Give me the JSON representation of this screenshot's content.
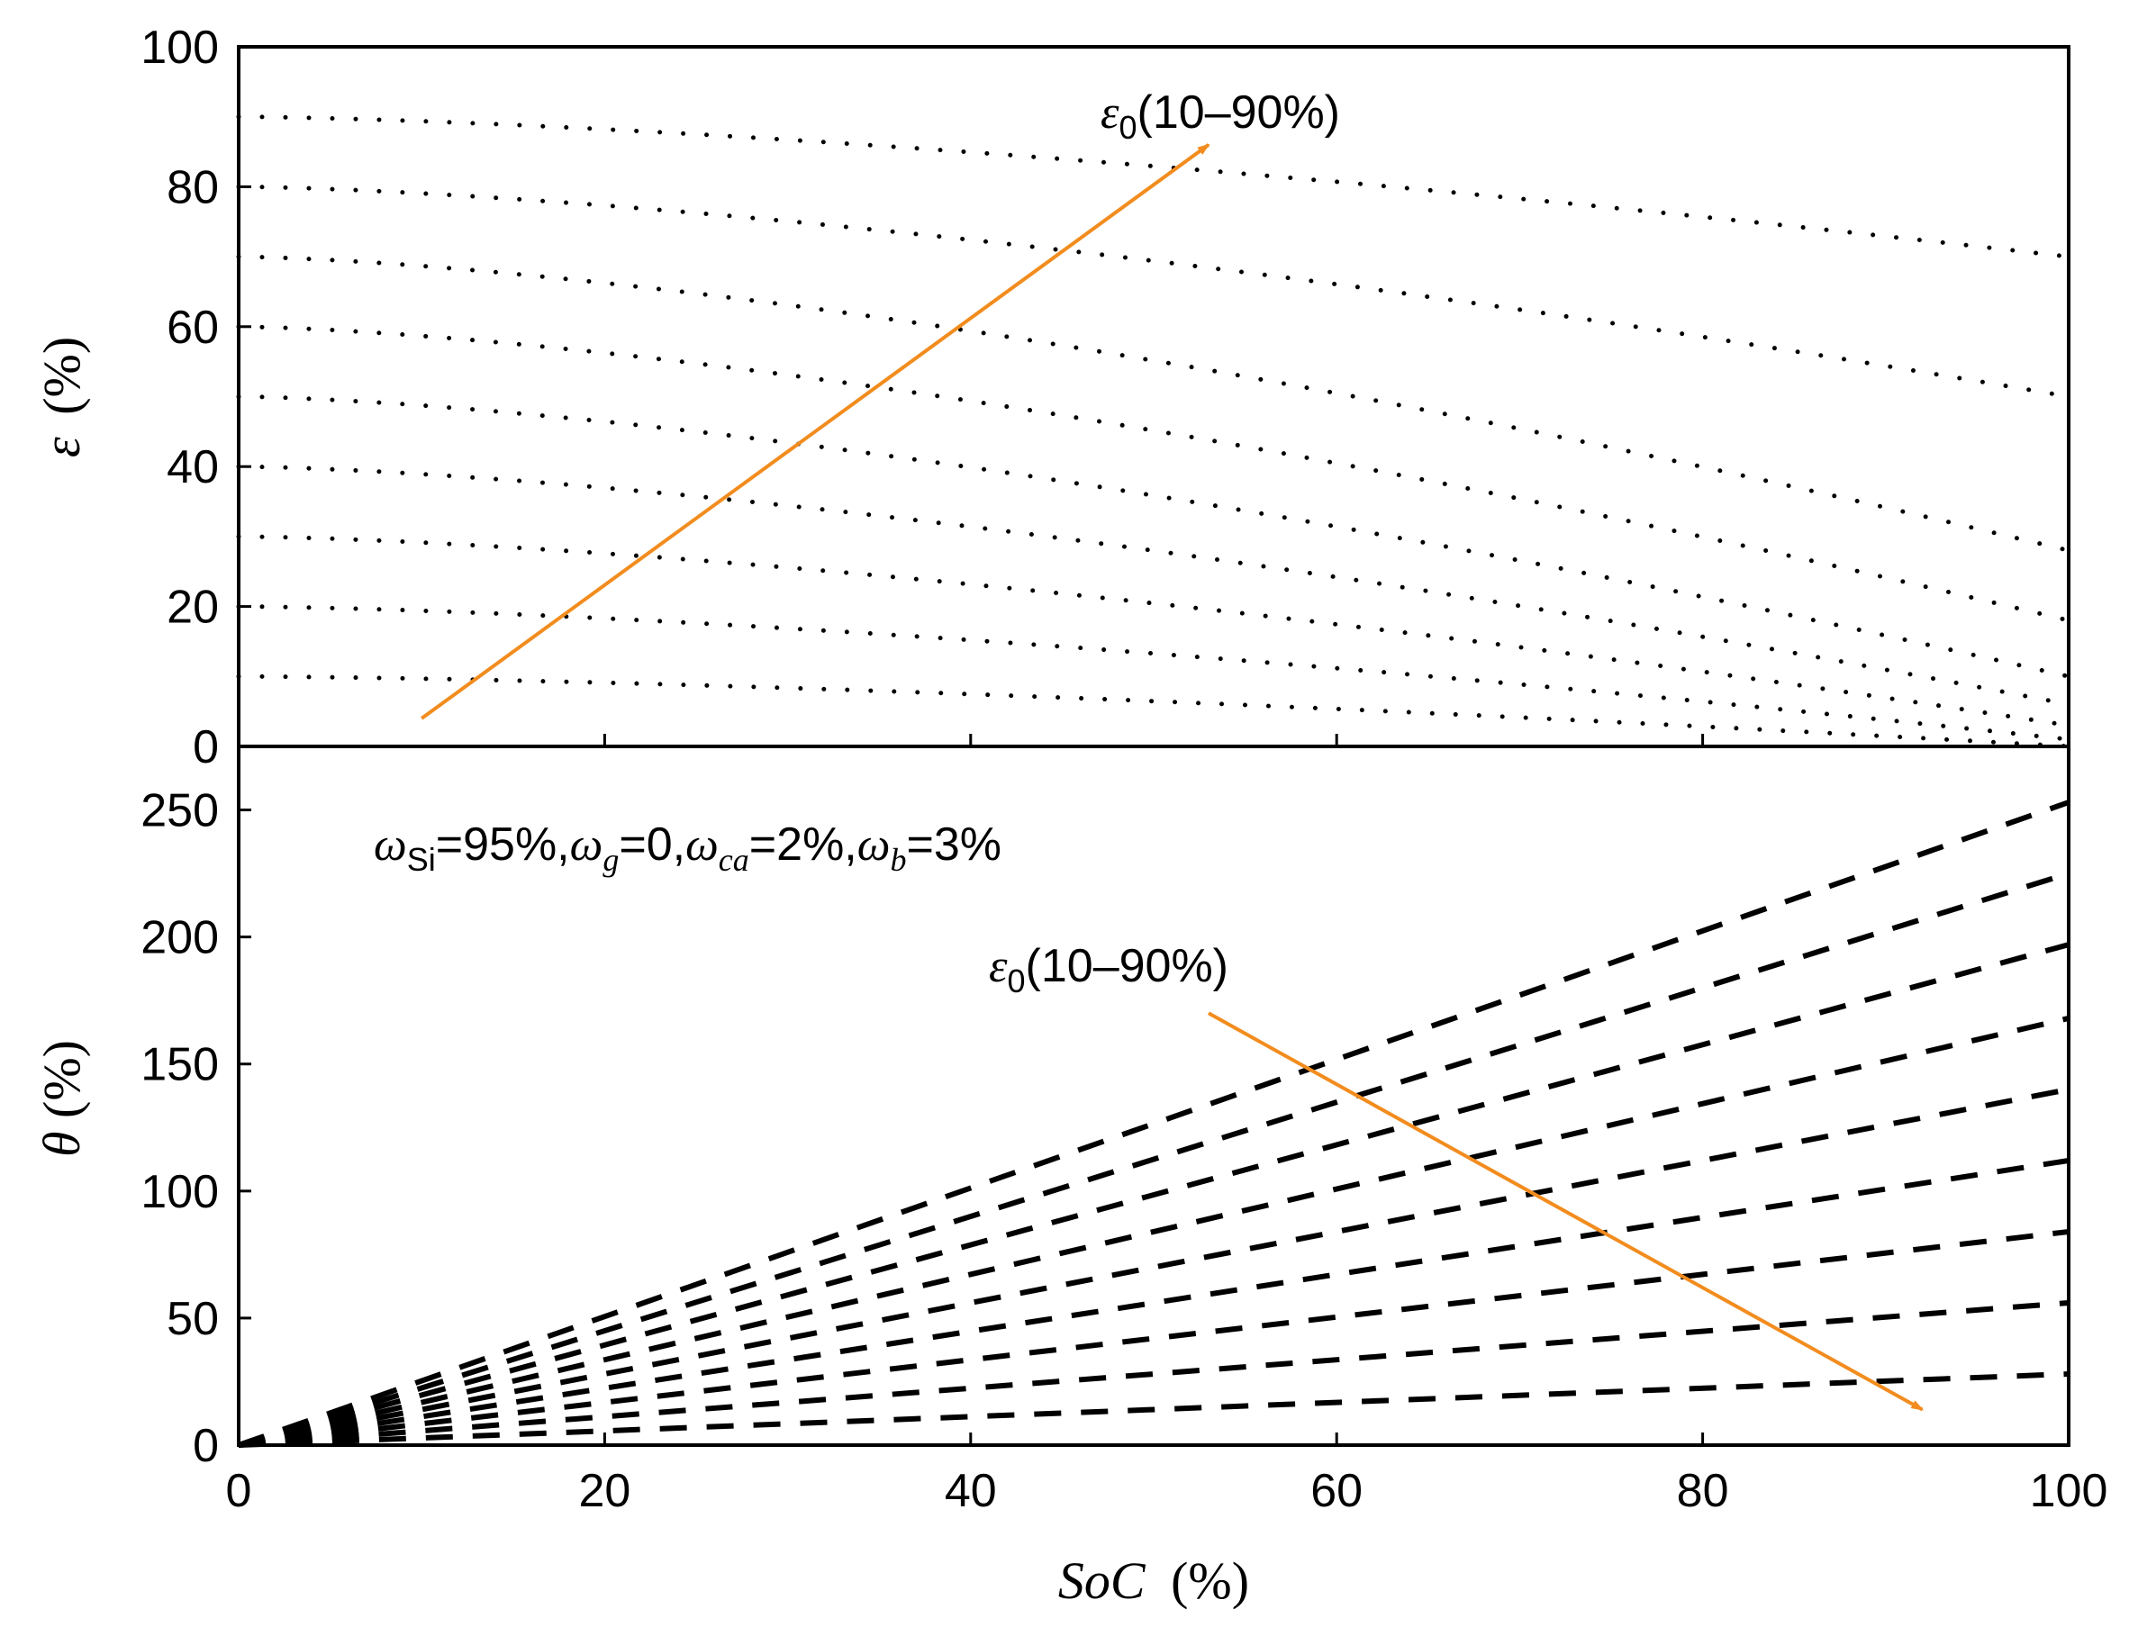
{
  "chart_data": [
    {
      "type": "scatter",
      "panel": "top",
      "xlabel": "SoC (%)",
      "ylabel": "ε (%)",
      "ylabel_symbol": "ε",
      "ylabel_unit": "(%)",
      "xlim": [
        0,
        100
      ],
      "ylim": [
        0,
        100
      ],
      "yticks": [
        0,
        20,
        40,
        60,
        80,
        100
      ],
      "line_style": "dotted",
      "series": [
        {
          "name": "ε0=10%",
          "x": [
            0,
            100
          ],
          "start": 10,
          "end": 0
        },
        {
          "name": "ε0=20%",
          "x": [
            0,
            100
          ],
          "start": 20,
          "end": 1
        },
        {
          "name": "ε0=30%",
          "x": [
            0,
            100
          ],
          "start": 30,
          "end": 3
        },
        {
          "name": "ε0=40%",
          "x": [
            0,
            100
          ],
          "start": 40,
          "end": 6
        },
        {
          "name": "ε0=50%",
          "x": [
            0,
            100
          ],
          "start": 50,
          "end": 10
        },
        {
          "name": "ε0=60%",
          "x": [
            0,
            100
          ],
          "start": 60,
          "end": 18
        },
        {
          "name": "ε0=70%",
          "x": [
            0,
            100
          ],
          "start": 70,
          "end": 28
        },
        {
          "name": "ε0=80%",
          "x": [
            0,
            100
          ],
          "start": 80,
          "end": 50
        },
        {
          "name": "ε0=90%",
          "x": [
            0,
            100
          ],
          "start": 90,
          "end": 70
        }
      ],
      "annotation": {
        "symbol": "ε",
        "subscript": "0",
        "text": "(10–90%)",
        "arrow_from": [
          10,
          4
        ],
        "arrow_to": [
          53,
          86
        ]
      }
    },
    {
      "type": "line",
      "panel": "bottom",
      "xlabel": "SoC (%)",
      "xlabel_symbol": "SoC",
      "xlabel_unit": "(%)",
      "ylabel": "θ(%)",
      "ylabel_symbol": "θ",
      "ylabel_unit": "(%)",
      "xlim": [
        0,
        100
      ],
      "ylim": [
        0,
        275
      ],
      "xticks": [
        0,
        20,
        40,
        60,
        80,
        100
      ],
      "yticks": [
        0,
        50,
        100,
        150,
        200,
        250
      ],
      "line_style": "dashed",
      "series": [
        {
          "name": "ε0=10%",
          "x": [
            0,
            100
          ],
          "y": [
            0,
            253
          ]
        },
        {
          "name": "ε0=20%",
          "x": [
            0,
            100
          ],
          "y": [
            0,
            225
          ]
        },
        {
          "name": "ε0=30%",
          "x": [
            0,
            100
          ],
          "y": [
            0,
            197
          ]
        },
        {
          "name": "ε0=40%",
          "x": [
            0,
            100
          ],
          "y": [
            0,
            168
          ]
        },
        {
          "name": "ε0=50%",
          "x": [
            0,
            100
          ],
          "y": [
            0,
            140
          ]
        },
        {
          "name": "ε0=60%",
          "x": [
            0,
            100
          ],
          "y": [
            0,
            112
          ]
        },
        {
          "name": "ε0=70%",
          "x": [
            0,
            100
          ],
          "y": [
            0,
            84
          ]
        },
        {
          "name": "ε0=80%",
          "x": [
            0,
            100
          ],
          "y": [
            0,
            56
          ]
        },
        {
          "name": "ε0=90%",
          "x": [
            0,
            100
          ],
          "y": [
            0,
            28
          ]
        }
      ],
      "annotation": {
        "symbol": "ε",
        "subscript": "0",
        "text": "(10–90%)",
        "arrow_from": [
          53,
          170
        ],
        "arrow_to": [
          92,
          14
        ]
      },
      "parameters_text": {
        "omega": "ω",
        "si_sub": "Si",
        "si_val": "=95%,",
        "g_sub": "g",
        "g_val": "=0,",
        "ca_sub": "ca",
        "ca_val": "=2%,",
        "b_sub": "b",
        "b_val": "=3%"
      }
    }
  ],
  "colors": {
    "arrow": "#f28c1e",
    "data": "#000000",
    "axis": "#000000"
  }
}
